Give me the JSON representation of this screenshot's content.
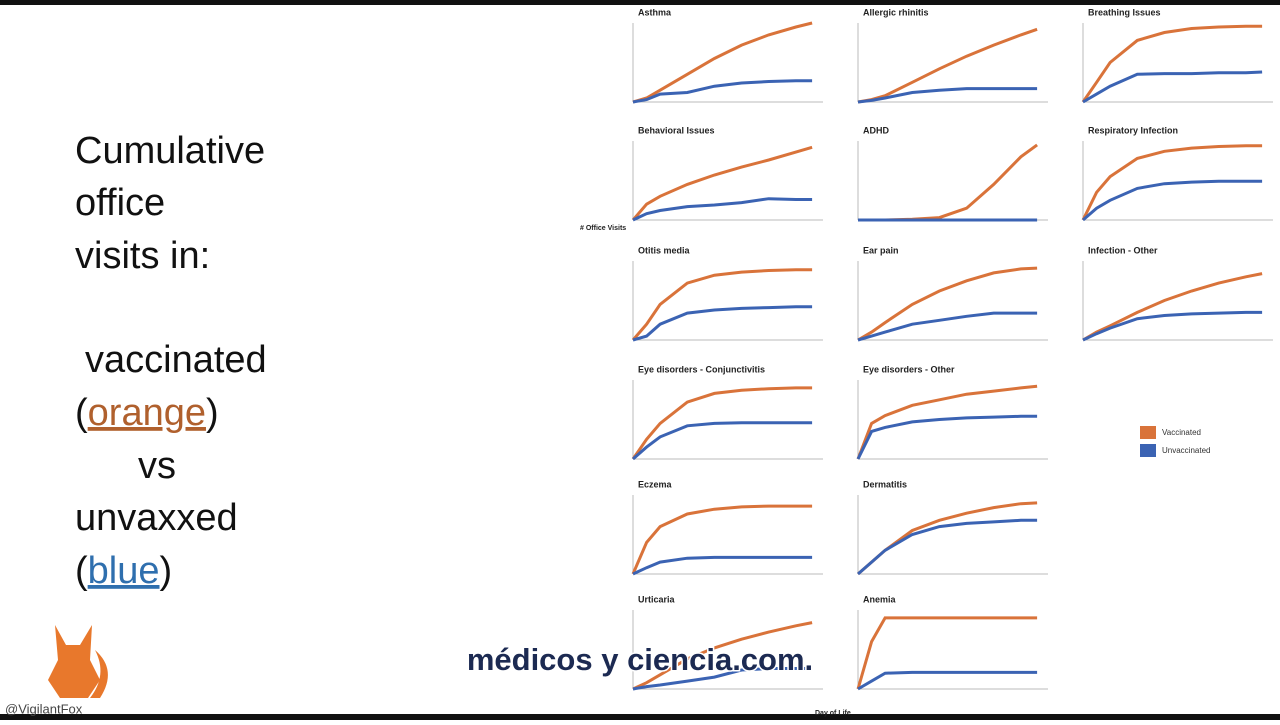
{
  "slide_text": {
    "line1": "Cumulative",
    "line2": "office",
    "line3": "visits in:",
    "vaccinated": "vaccinated",
    "open": "(",
    "orange": "orange",
    "close": ")",
    "vs": "vs",
    "unvaxxed": "unvaxxed",
    "blue": "blue"
  },
  "y_label": "# Office Visits",
  "x_label": "Day of Life",
  "caption": "médicos y ciencia.com.",
  "watermark": "@VigilantFox",
  "chart_data": [
    {
      "type": "line",
      "title": "Asthma",
      "xlim": [
        0,
        3500
      ],
      "ylim": [
        0,
        100
      ],
      "x": [
        0,
        250,
        500,
        1000,
        1500,
        2000,
        2500,
        3000,
        3300
      ],
      "series": [
        {
          "name": "Vaccinated",
          "color": "#d9733a",
          "values": [
            0,
            5,
            15,
            35,
            55,
            72,
            85,
            95,
            100
          ]
        },
        {
          "name": "Unvaccinated",
          "color": "#3b63b3",
          "values": [
            0,
            3,
            10,
            12,
            20,
            24,
            26,
            27,
            27
          ]
        }
      ]
    },
    {
      "type": "line",
      "title": "Allergic rhinitis",
      "xlim": [
        0,
        3500
      ],
      "ylim": [
        0,
        100
      ],
      "x": [
        0,
        250,
        500,
        1000,
        1500,
        2000,
        2500,
        3000,
        3300
      ],
      "series": [
        {
          "name": "Vaccinated",
          "color": "#d9733a",
          "values": [
            0,
            3,
            8,
            25,
            42,
            58,
            72,
            85,
            92
          ]
        },
        {
          "name": "Unvaccinated",
          "color": "#3b63b3",
          "values": [
            0,
            2,
            5,
            12,
            15,
            17,
            17,
            17,
            17
          ]
        }
      ]
    },
    {
      "type": "line",
      "title": "Breathing Issues",
      "xlim": [
        0,
        3500
      ],
      "ylim": [
        0,
        100
      ],
      "x": [
        0,
        250,
        500,
        1000,
        1500,
        2000,
        2500,
        3000,
        3300
      ],
      "series": [
        {
          "name": "Vaccinated",
          "color": "#d9733a",
          "values": [
            0,
            25,
            50,
            78,
            88,
            93,
            95,
            96,
            96
          ]
        },
        {
          "name": "Unvaccinated",
          "color": "#3b63b3",
          "values": [
            0,
            10,
            20,
            35,
            36,
            36,
            37,
            37,
            38
          ]
        }
      ]
    },
    {
      "type": "line",
      "title": "Behavioral Issues",
      "xlim": [
        0,
        3500
      ],
      "ylim": [
        0,
        100
      ],
      "x": [
        0,
        250,
        500,
        1000,
        1500,
        2000,
        2500,
        3000,
        3300
      ],
      "series": [
        {
          "name": "Vaccinated",
          "color": "#d9733a",
          "values": [
            0,
            20,
            30,
            45,
            57,
            67,
            76,
            86,
            92
          ]
        },
        {
          "name": "Unvaccinated",
          "color": "#3b63b3",
          "values": [
            0,
            8,
            12,
            17,
            19,
            22,
            27,
            26,
            26
          ]
        }
      ]
    },
    {
      "type": "line",
      "title": "ADHD",
      "xlim": [
        0,
        3500
      ],
      "ylim": [
        0,
        100
      ],
      "x": [
        0,
        250,
        500,
        1000,
        1500,
        2000,
        2500,
        3000,
        3300
      ],
      "series": [
        {
          "name": "Vaccinated",
          "color": "#d9733a",
          "values": [
            0,
            0,
            0,
            1,
            3,
            15,
            45,
            80,
            95
          ]
        },
        {
          "name": "Unvaccinated",
          "color": "#3b63b3",
          "values": [
            0,
            0,
            0,
            0,
            0,
            0,
            0,
            0,
            0
          ]
        }
      ]
    },
    {
      "type": "line",
      "title": "Respiratory Infection",
      "xlim": [
        0,
        3500
      ],
      "ylim": [
        0,
        100
      ],
      "x": [
        0,
        250,
        500,
        1000,
        1500,
        2000,
        2500,
        3000,
        3300
      ],
      "series": [
        {
          "name": "Vaccinated",
          "color": "#d9733a",
          "values": [
            0,
            35,
            55,
            78,
            87,
            91,
            93,
            94,
            94
          ]
        },
        {
          "name": "Unvaccinated",
          "color": "#3b63b3",
          "values": [
            0,
            15,
            25,
            40,
            46,
            48,
            49,
            49,
            49
          ]
        }
      ]
    },
    {
      "type": "line",
      "title": "Otitis media",
      "xlim": [
        0,
        3500
      ],
      "ylim": [
        0,
        100
      ],
      "x": [
        0,
        250,
        500,
        1000,
        1500,
        2000,
        2500,
        3000,
        3300
      ],
      "series": [
        {
          "name": "Vaccinated",
          "color": "#d9733a",
          "values": [
            0,
            20,
            45,
            72,
            82,
            86,
            88,
            89,
            89
          ]
        },
        {
          "name": "Unvaccinated",
          "color": "#3b63b3",
          "values": [
            0,
            5,
            20,
            34,
            38,
            40,
            41,
            42,
            42
          ]
        }
      ]
    },
    {
      "type": "line",
      "title": "Ear pain",
      "xlim": [
        0,
        3500
      ],
      "ylim": [
        0,
        100
      ],
      "x": [
        0,
        250,
        500,
        1000,
        1500,
        2000,
        2500,
        3000,
        3300
      ],
      "series": [
        {
          "name": "Vaccinated",
          "color": "#d9733a",
          "values": [
            0,
            10,
            22,
            45,
            62,
            75,
            85,
            90,
            91
          ]
        },
        {
          "name": "Unvaccinated",
          "color": "#3b63b3",
          "values": [
            0,
            5,
            10,
            20,
            25,
            30,
            34,
            34,
            34
          ]
        }
      ]
    },
    {
      "type": "line",
      "title": "Infection - Other",
      "xlim": [
        0,
        3500
      ],
      "ylim": [
        0,
        100
      ],
      "x": [
        0,
        250,
        500,
        1000,
        1500,
        2000,
        2500,
        3000,
        3300
      ],
      "series": [
        {
          "name": "Vaccinated",
          "color": "#d9733a",
          "values": [
            0,
            10,
            18,
            35,
            50,
            62,
            72,
            80,
            84
          ]
        },
        {
          "name": "Unvaccinated",
          "color": "#3b63b3",
          "values": [
            0,
            8,
            15,
            27,
            31,
            33,
            34,
            35,
            35
          ]
        }
      ]
    },
    {
      "type": "line",
      "title": "Eye disorders - Conjunctivitis",
      "xlim": [
        0,
        3500
      ],
      "ylim": [
        0,
        100
      ],
      "x": [
        0,
        250,
        500,
        1000,
        1500,
        2000,
        2500,
        3000,
        3300
      ],
      "series": [
        {
          "name": "Vaccinated",
          "color": "#d9733a",
          "values": [
            0,
            25,
            45,
            72,
            83,
            87,
            89,
            90,
            90
          ]
        },
        {
          "name": "Unvaccinated",
          "color": "#3b63b3",
          "values": [
            0,
            15,
            28,
            42,
            45,
            46,
            46,
            46,
            46
          ]
        }
      ]
    },
    {
      "type": "line",
      "title": "Eye disorders - Other",
      "xlim": [
        0,
        3500
      ],
      "ylim": [
        0,
        100
      ],
      "x": [
        0,
        250,
        500,
        1000,
        1500,
        2000,
        2500,
        3000,
        3300
      ],
      "series": [
        {
          "name": "Vaccinated",
          "color": "#d9733a",
          "values": [
            0,
            45,
            55,
            68,
            75,
            82,
            86,
            90,
            92
          ]
        },
        {
          "name": "Unvaccinated",
          "color": "#3b63b3",
          "values": [
            0,
            35,
            40,
            47,
            50,
            52,
            53,
            54,
            54
          ]
        }
      ]
    },
    {
      "type": "line",
      "title": "Eczema",
      "xlim": [
        0,
        3500
      ],
      "ylim": [
        0,
        100
      ],
      "x": [
        0,
        250,
        500,
        1000,
        1500,
        2000,
        2500,
        3000,
        3300
      ],
      "series": [
        {
          "name": "Vaccinated",
          "color": "#d9733a",
          "values": [
            0,
            40,
            60,
            76,
            82,
            85,
            86,
            86,
            86
          ]
        },
        {
          "name": "Unvaccinated",
          "color": "#3b63b3",
          "values": [
            0,
            8,
            15,
            20,
            21,
            21,
            21,
            21,
            21
          ]
        }
      ]
    },
    {
      "type": "line",
      "title": "Dermatitis",
      "xlim": [
        0,
        3500
      ],
      "ylim": [
        0,
        100
      ],
      "x": [
        0,
        250,
        500,
        1000,
        1500,
        2000,
        2500,
        3000,
        3300
      ],
      "series": [
        {
          "name": "Vaccinated",
          "color": "#d9733a",
          "values": [
            0,
            15,
            30,
            55,
            68,
            77,
            84,
            89,
            90
          ]
        },
        {
          "name": "Unvaccinated",
          "color": "#3b63b3",
          "values": [
            0,
            15,
            30,
            50,
            60,
            64,
            66,
            68,
            68
          ]
        }
      ]
    },
    {
      "type": "line",
      "title": "Urticaria",
      "xlim": [
        0,
        3500
      ],
      "ylim": [
        0,
        100
      ],
      "x": [
        0,
        250,
        500,
        1000,
        1500,
        2000,
        2500,
        3000,
        3300
      ],
      "series": [
        {
          "name": "Vaccinated",
          "color": "#d9733a",
          "values": [
            0,
            8,
            18,
            38,
            52,
            63,
            72,
            80,
            84
          ]
        },
        {
          "name": "Unvaccinated",
          "color": "#3b63b3",
          "values": [
            0,
            3,
            5,
            10,
            15,
            24,
            26,
            26,
            26
          ]
        }
      ]
    },
    {
      "type": "line",
      "title": "Anemia",
      "xlim": [
        0,
        3500
      ],
      "ylim": [
        0,
        100
      ],
      "x": [
        0,
        250,
        500,
        1000,
        1500,
        2000,
        2500,
        3000,
        3300
      ],
      "series": [
        {
          "name": "Vaccinated",
          "color": "#d9733a",
          "values": [
            0,
            60,
            90,
            90,
            90,
            90,
            90,
            90,
            90
          ]
        },
        {
          "name": "Unvaccinated",
          "color": "#3b63b3",
          "values": [
            0,
            10,
            20,
            21,
            21,
            21,
            21,
            21,
            21
          ]
        }
      ]
    }
  ]
}
